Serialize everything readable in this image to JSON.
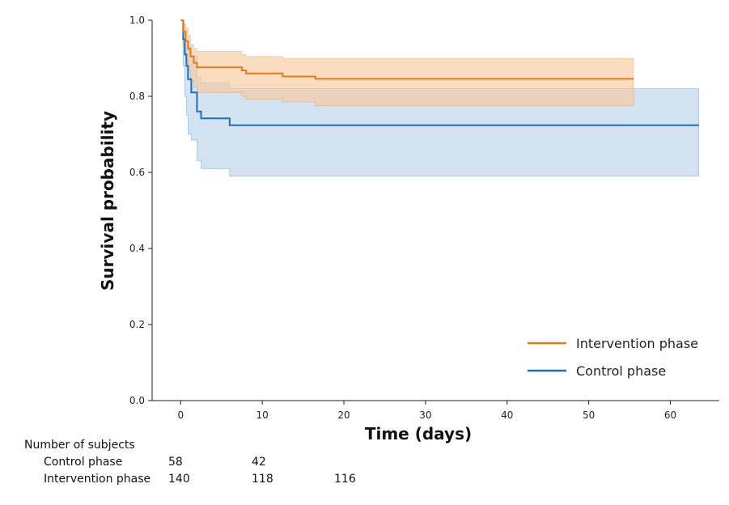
{
  "chart_data": {
    "type": "line",
    "subtype": "kaplan-meier",
    "title": "",
    "xlabel": "Time (days)",
    "ylabel": "Survival probability",
    "xlim": [
      -3.5,
      66
    ],
    "ylim": [
      0.0,
      1.0
    ],
    "x_ticks": [
      0,
      10,
      20,
      30,
      40,
      50,
      60
    ],
    "y_ticks": [
      0.0,
      0.2,
      0.4,
      0.6,
      0.8,
      1.0
    ],
    "x_tick_labels": [
      "0",
      "10",
      "20",
      "30",
      "40",
      "50",
      "60"
    ],
    "y_tick_labels": [
      "0.0",
      "0.2",
      "0.4",
      "0.6",
      "0.8",
      "1.0"
    ],
    "grid": false,
    "legend_position": "bottom-right",
    "series": [
      {
        "name": "Intervention phase",
        "color": "#e07b1c",
        "band_color": "#f7c9a0",
        "steps": [
          {
            "t": 0,
            "s": 1.0,
            "lo": 1.0,
            "hi": 1.0
          },
          {
            "t": 0.3,
            "s": 0.97,
            "lo": 0.93,
            "hi": 0.99
          },
          {
            "t": 0.6,
            "s": 0.945,
            "lo": 0.9,
            "hi": 0.98
          },
          {
            "t": 0.9,
            "s": 0.925,
            "lo": 0.87,
            "hi": 0.96
          },
          {
            "t": 1.2,
            "s": 0.905,
            "lo": 0.84,
            "hi": 0.935
          },
          {
            "t": 1.6,
            "s": 0.888,
            "lo": 0.825,
            "hi": 0.925
          },
          {
            "t": 2.0,
            "s": 0.876,
            "lo": 0.81,
            "hi": 0.918
          },
          {
            "t": 7.5,
            "s": 0.868,
            "lo": 0.8,
            "hi": 0.91
          },
          {
            "t": 8.0,
            "s": 0.86,
            "lo": 0.792,
            "hi": 0.905
          },
          {
            "t": 12.5,
            "s": 0.852,
            "lo": 0.785,
            "hi": 0.9
          },
          {
            "t": 16.5,
            "s": 0.846,
            "lo": 0.775,
            "hi": 0.9
          },
          {
            "t": 55.5,
            "s": 0.846,
            "lo": 0.775,
            "hi": 0.9
          }
        ]
      },
      {
        "name": "Control phase",
        "color": "#1f6fb4",
        "band_color": "#bcd4ea",
        "steps": [
          {
            "t": 0,
            "s": 1.0,
            "lo": 1.0,
            "hi": 1.0
          },
          {
            "t": 0.3,
            "s": 0.95,
            "lo": 0.88,
            "hi": 0.99
          },
          {
            "t": 0.5,
            "s": 0.91,
            "lo": 0.8,
            "hi": 0.975
          },
          {
            "t": 0.7,
            "s": 0.88,
            "lo": 0.75,
            "hi": 0.955
          },
          {
            "t": 0.9,
            "s": 0.845,
            "lo": 0.7,
            "hi": 0.93
          },
          {
            "t": 1.3,
            "s": 0.81,
            "lo": 0.685,
            "hi": 0.905
          },
          {
            "t": 2.0,
            "s": 0.76,
            "lo": 0.63,
            "hi": 0.85
          },
          {
            "t": 2.5,
            "s": 0.742,
            "lo": 0.61,
            "hi": 0.835
          },
          {
            "t": 6.0,
            "s": 0.724,
            "lo": 0.59,
            "hi": 0.82
          },
          {
            "t": 63.5,
            "s": 0.724,
            "lo": 0.59,
            "hi": 0.82
          }
        ]
      }
    ],
    "risk_table": {
      "title": "Number of subjects",
      "rows": [
        {
          "label": "Control phase",
          "times": [
            0,
            10
          ],
          "counts": [
            "58",
            "42"
          ]
        },
        {
          "label": "Intervention phase",
          "times": [
            0,
            10,
            20
          ],
          "counts": [
            "140",
            "118",
            "116"
          ]
        }
      ]
    }
  }
}
